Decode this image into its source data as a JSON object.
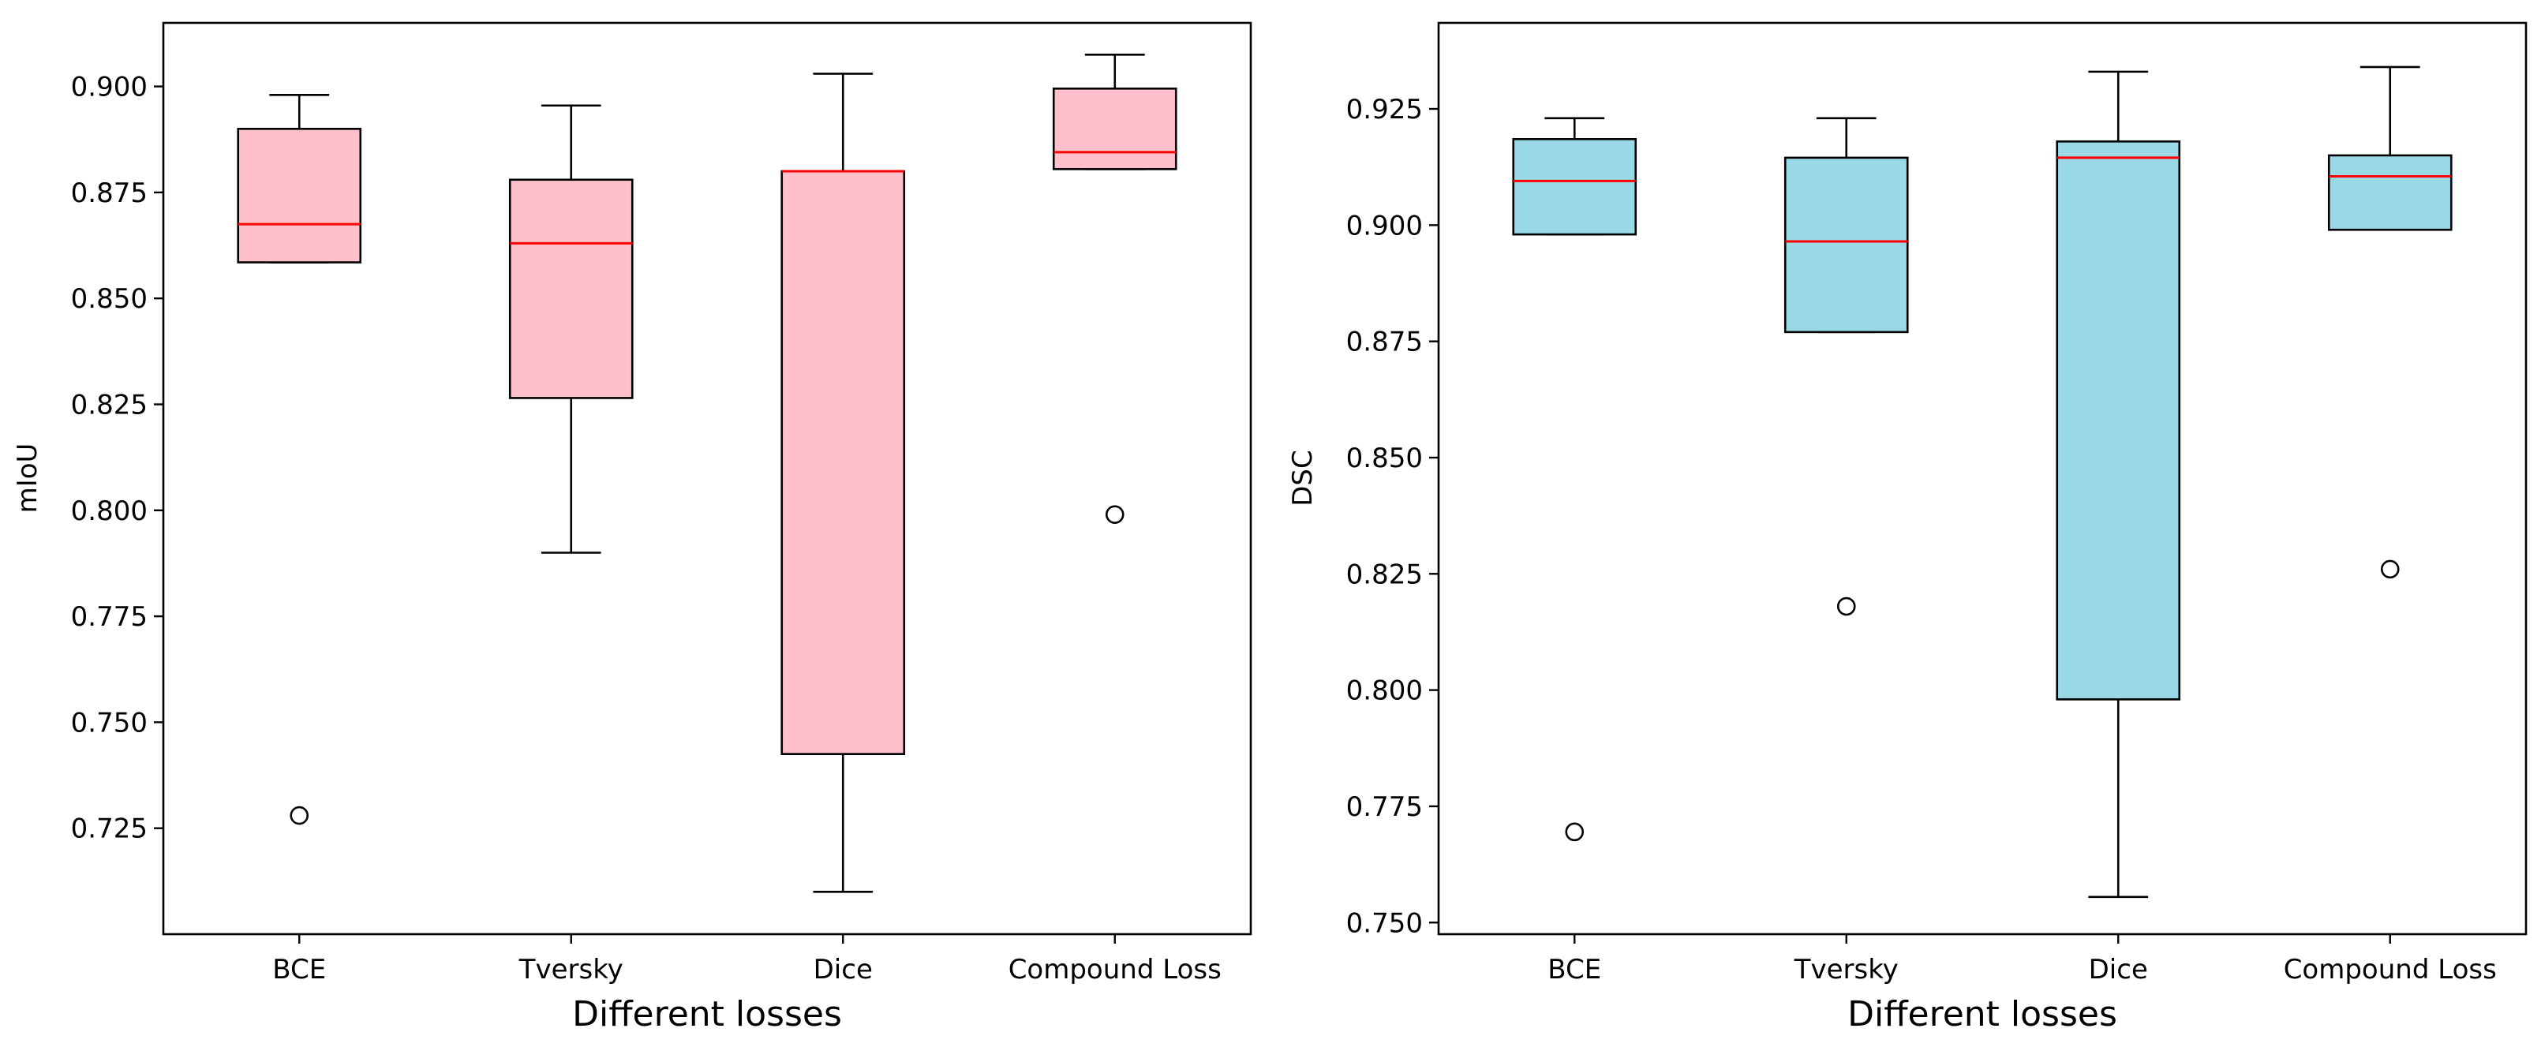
{
  "chart_data": [
    {
      "type": "boxplot",
      "xlabel": "Different losses",
      "ylabel": "mIoU",
      "categories": [
        "BCE",
        "Tversky",
        "Dice",
        "Compound Loss"
      ],
      "ylim": [
        0.7,
        0.915
      ],
      "yticks": [
        0.725,
        0.75,
        0.775,
        0.8,
        0.825,
        0.85,
        0.875,
        0.9
      ],
      "ytick_labels": [
        "0.725",
        "0.750",
        "0.775",
        "0.800",
        "0.825",
        "0.850",
        "0.875",
        "0.900"
      ],
      "box_color": "#ffc0cb",
      "median_color": "#ff0000",
      "boxes": [
        {
          "whisker_low": 0.8585,
          "q1": 0.8585,
          "median": 0.8675,
          "q3": 0.89,
          "whisker_high": 0.898,
          "outliers": [
            0.728
          ]
        },
        {
          "whisker_low": 0.79,
          "q1": 0.8265,
          "median": 0.863,
          "q3": 0.878,
          "whisker_high": 0.8955,
          "outliers": []
        },
        {
          "whisker_low": 0.71,
          "q1": 0.7425,
          "median": 0.88,
          "q3": 0.88,
          "whisker_high": 0.903,
          "outliers": []
        },
        {
          "whisker_low": 0.8805,
          "q1": 0.8805,
          "median": 0.8845,
          "q3": 0.8995,
          "whisker_high": 0.9075,
          "outliers": [
            0.799
          ]
        }
      ]
    },
    {
      "type": "boxplot",
      "xlabel": "Different losses",
      "ylabel": "DSC",
      "categories": [
        "BCE",
        "Tversky",
        "Dice",
        "Compound Loss"
      ],
      "ylim": [
        0.7475,
        0.9435
      ],
      "yticks": [
        0.75,
        0.775,
        0.8,
        0.825,
        0.85,
        0.875,
        0.9,
        0.925
      ],
      "ytick_labels": [
        "0.750",
        "0.775",
        "0.800",
        "0.825",
        "0.850",
        "0.875",
        "0.900",
        "0.925"
      ],
      "box_color": "#99d9e6",
      "median_color": "#ff0000",
      "boxes": [
        {
          "whisker_low": 0.898,
          "q1": 0.898,
          "median": 0.9095,
          "q3": 0.9185,
          "whisker_high": 0.923,
          "outliers": [
            0.7695
          ]
        },
        {
          "whisker_low": 0.877,
          "q1": 0.877,
          "median": 0.8965,
          "q3": 0.9145,
          "whisker_high": 0.923,
          "outliers": [
            0.818
          ]
        },
        {
          "whisker_low": 0.7555,
          "q1": 0.798,
          "median": 0.9145,
          "q3": 0.918,
          "whisker_high": 0.933,
          "outliers": []
        },
        {
          "whisker_low": 0.899,
          "q1": 0.899,
          "median": 0.9105,
          "q3": 0.915,
          "whisker_high": 0.934,
          "outliers": [
            0.826
          ]
        }
      ]
    }
  ]
}
